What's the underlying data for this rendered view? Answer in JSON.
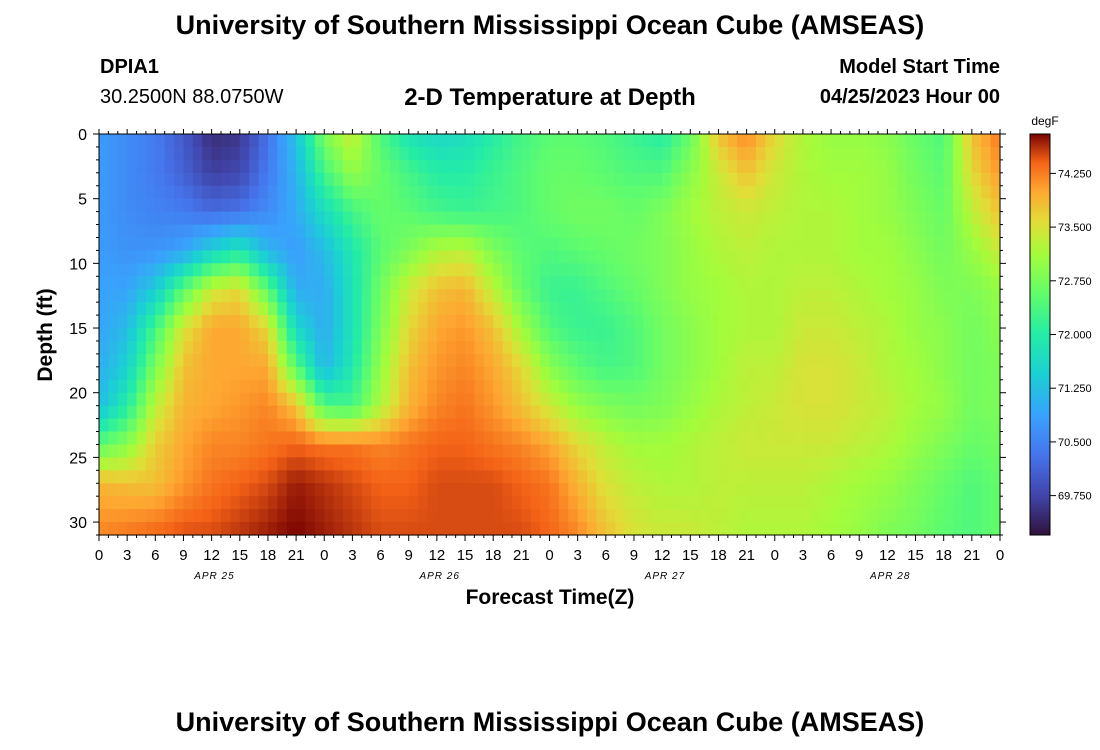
{
  "header": {
    "title": "University of Southern Mississippi Ocean Cube (AMSEAS)",
    "station": "DPIA1",
    "coords": "30.2500N  88.0750W",
    "subtitle": "2-D Temperature at Depth",
    "model_start_label": "Model Start Time",
    "model_start_date": "04/25/2023 Hour 00"
  },
  "footer": {
    "title": "University of Southern Mississippi Ocean Cube (AMSEAS)"
  },
  "chart_data": {
    "type": "heatmap",
    "title": "2-D Temperature at Depth",
    "xlabel": "Forecast Time(Z)",
    "ylabel": "Depth (ft)",
    "x_ticks": [
      "0",
      "3",
      "6",
      "9",
      "12",
      "15",
      "18",
      "21",
      "0",
      "3",
      "6",
      "9",
      "12",
      "15",
      "18",
      "21",
      "0",
      "3",
      "6",
      "9",
      "12",
      "15",
      "18",
      "21",
      "0",
      "3",
      "6",
      "9",
      "12",
      "15",
      "18",
      "21",
      "0"
    ],
    "day_labels": [
      "APR 25",
      "APR 26",
      "APR 27",
      "APR 28"
    ],
    "x_range_hours": [
      0,
      96
    ],
    "y_ticks": [
      0,
      5,
      10,
      15,
      20,
      25,
      30
    ],
    "y_range": [
      0,
      31
    ],
    "colorbar": {
      "unit": "degF",
      "range": [
        69.2,
        74.8
      ],
      "ticks": [
        "74.250",
        "73.500",
        "72.750",
        "72.000",
        "71.250",
        "70.500",
        "69.750"
      ]
    },
    "depths_ft": [
      0,
      3,
      6,
      9,
      12,
      15,
      18,
      21,
      24,
      27,
      31
    ],
    "times_h": [
      0,
      3,
      6,
      9,
      12,
      15,
      18,
      21,
      24,
      27,
      30,
      33,
      36,
      39,
      42,
      45,
      48,
      51,
      54,
      57,
      60,
      63,
      66,
      69,
      72,
      75,
      78,
      81,
      84,
      87,
      90,
      93,
      96
    ],
    "temperature_degF": [
      [
        70.8,
        70.6,
        70.4,
        70.0,
        69.5,
        69.6,
        70.3,
        71.3,
        72.8,
        73.4,
        72.4,
        71.8,
        71.6,
        71.7,
        72.0,
        72.3,
        72.5,
        72.5,
        72.4,
        72.2,
        72.0,
        72.6,
        73.8,
        74.2,
        73.6,
        73.2,
        73.0,
        73.0,
        72.9,
        72.6,
        72.4,
        73.8,
        74.3
      ],
      [
        70.8,
        70.6,
        70.4,
        70.1,
        69.7,
        69.8,
        70.4,
        71.1,
        72.3,
        73.0,
        72.6,
        72.3,
        72.0,
        72.0,
        72.2,
        72.4,
        72.6,
        72.6,
        72.5,
        72.4,
        72.4,
        72.9,
        73.4,
        73.8,
        73.4,
        73.2,
        73.1,
        73.1,
        73.0,
        72.7,
        72.5,
        73.6,
        74.1
      ],
      [
        70.8,
        70.6,
        70.5,
        70.4,
        70.2,
        70.3,
        70.6,
        71.0,
        71.7,
        72.3,
        72.6,
        72.5,
        72.3,
        72.2,
        72.3,
        72.4,
        72.6,
        72.7,
        72.7,
        72.6,
        72.8,
        73.1,
        73.3,
        73.4,
        73.3,
        73.2,
        73.2,
        73.1,
        73.0,
        72.8,
        72.6,
        73.3,
        73.8
      ],
      [
        70.8,
        70.7,
        70.7,
        70.9,
        71.5,
        71.9,
        71.1,
        70.8,
        71.2,
        71.9,
        72.5,
        72.8,
        73.2,
        73.3,
        72.8,
        72.5,
        72.4,
        72.5,
        72.6,
        72.7,
        72.8,
        73.0,
        73.2,
        73.3,
        73.2,
        73.2,
        73.2,
        73.1,
        73.1,
        72.9,
        72.7,
        73.0,
        73.4
      ],
      [
        70.9,
        70.9,
        71.4,
        72.5,
        73.4,
        73.6,
        72.5,
        71.0,
        71.0,
        71.8,
        72.7,
        73.4,
        73.8,
        73.9,
        73.3,
        72.6,
        72.2,
        72.2,
        72.4,
        72.6,
        72.8,
        73.0,
        73.1,
        73.2,
        73.2,
        73.3,
        73.3,
        73.2,
        73.1,
        73.0,
        72.8,
        72.8,
        73.0
      ],
      [
        70.9,
        71.2,
        72.3,
        73.5,
        74.0,
        74.0,
        73.6,
        71.6,
        71.0,
        71.8,
        72.8,
        73.6,
        74.0,
        74.1,
        73.8,
        73.1,
        72.4,
        72.2,
        72.2,
        72.4,
        72.7,
        72.9,
        73.1,
        73.2,
        73.2,
        73.4,
        73.4,
        73.3,
        73.2,
        73.0,
        72.9,
        72.7,
        72.9
      ],
      [
        71.0,
        71.5,
        72.8,
        73.8,
        74.0,
        74.0,
        74.0,
        72.5,
        71.1,
        71.9,
        73.0,
        73.8,
        74.1,
        74.2,
        74.0,
        73.6,
        72.9,
        72.5,
        72.3,
        72.4,
        72.7,
        72.9,
        73.1,
        73.3,
        73.3,
        73.5,
        73.5,
        73.4,
        73.2,
        73.1,
        72.9,
        72.7,
        72.8
      ],
      [
        71.2,
        72.0,
        73.3,
        73.9,
        74.0,
        74.1,
        74.2,
        73.8,
        72.4,
        72.3,
        73.2,
        73.9,
        74.2,
        74.3,
        74.1,
        73.8,
        73.4,
        73.0,
        72.8,
        72.7,
        72.8,
        73.0,
        73.2,
        73.3,
        73.4,
        73.5,
        73.5,
        73.4,
        73.3,
        73.1,
        73.0,
        72.7,
        72.8
      ],
      [
        72.5,
        72.9,
        73.7,
        74.0,
        74.2,
        74.2,
        74.3,
        74.4,
        74.3,
        74.3,
        74.2,
        74.3,
        74.4,
        74.4,
        74.3,
        74.2,
        74.0,
        73.6,
        73.3,
        73.1,
        73.1,
        73.2,
        73.3,
        73.4,
        73.4,
        73.4,
        73.4,
        73.3,
        73.2,
        73.0,
        72.8,
        72.6,
        72.7
      ],
      [
        73.9,
        73.8,
        73.8,
        74.1,
        74.3,
        74.4,
        74.5,
        74.7,
        74.6,
        74.5,
        74.4,
        74.4,
        74.5,
        74.5,
        74.5,
        74.4,
        74.3,
        73.9,
        73.5,
        73.3,
        73.2,
        73.2,
        73.3,
        73.3,
        73.3,
        73.3,
        73.2,
        73.1,
        73.0,
        72.8,
        72.6,
        72.4,
        72.6
      ],
      [
        74.2,
        74.3,
        74.4,
        74.5,
        74.5,
        74.6,
        74.7,
        74.8,
        74.7,
        74.6,
        74.5,
        74.5,
        74.5,
        74.5,
        74.5,
        74.5,
        74.4,
        74.2,
        73.8,
        73.5,
        73.4,
        73.4,
        73.3,
        73.2,
        73.2,
        73.2,
        73.1,
        73.0,
        72.8,
        72.7,
        72.5,
        72.4,
        72.6
      ]
    ]
  }
}
